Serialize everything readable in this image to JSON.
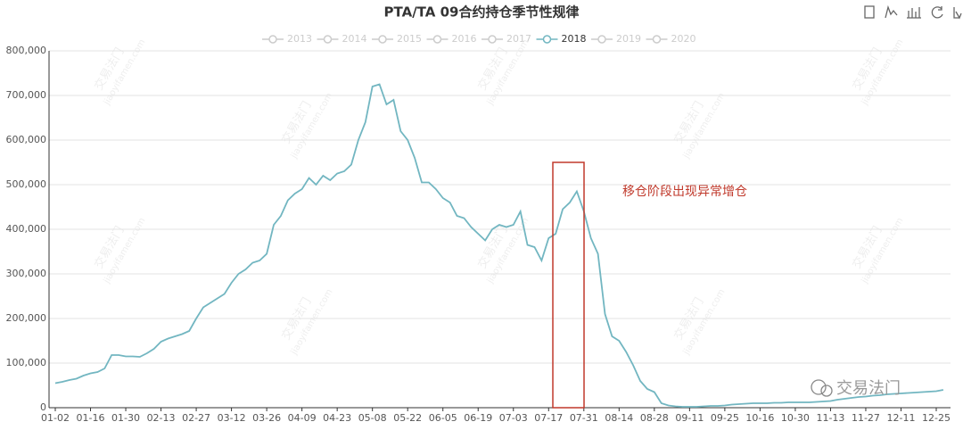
{
  "chart_data": {
    "type": "line",
    "title": "PTA/TA 09合约持仓季节性规律",
    "legend": [
      "2013",
      "2014",
      "2015",
      "2016",
      "2017",
      "2018",
      "2019",
      "2020"
    ],
    "annotation": "移仓阶段出现异常增仓",
    "watermark": "交易法门",
    "watermark_site": "jiaoyifamen.com",
    "categories": [
      "01-02",
      null,
      null,
      null,
      null,
      "01-16",
      null,
      null,
      null,
      null,
      "01-30",
      null,
      null,
      null,
      null,
      "02-13",
      null,
      null,
      null,
      null,
      "02-27",
      null,
      null,
      null,
      null,
      "03-12",
      null,
      null,
      null,
      null,
      "03-26",
      null,
      null,
      null,
      null,
      "04-09",
      null,
      null,
      null,
      null,
      "04-23",
      null,
      null,
      null,
      null,
      "05-08",
      null,
      null,
      null,
      null,
      "05-22",
      null,
      null,
      null,
      null,
      "06-05",
      null,
      null,
      null,
      null,
      "06-19",
      null,
      null,
      null,
      null,
      "07-03",
      null,
      null,
      null,
      null,
      "07-17",
      null,
      null,
      null,
      null,
      "07-31",
      null,
      null,
      null,
      null,
      "08-14",
      null,
      null,
      null,
      null,
      "08-28",
      null,
      null,
      null,
      null,
      "09-11",
      null,
      null,
      null,
      null,
      "09-25",
      null,
      null,
      null,
      null,
      "10-16",
      null,
      null,
      null,
      null,
      "10-30",
      null,
      null,
      null,
      null,
      "11-13",
      null,
      null,
      null,
      null,
      "11-27",
      null,
      null,
      null,
      null,
      "12-11",
      null,
      null,
      null,
      null,
      "12-25",
      null
    ],
    "series": [
      {
        "name": "2018",
        "color": "#72b6c1",
        "values": [
          55000,
          58000,
          62000,
          65000,
          72000,
          77000,
          80000,
          88000,
          118000,
          118000,
          115000,
          115000,
          114000,
          122000,
          132000,
          148000,
          155000,
          160000,
          165000,
          172000,
          200000,
          225000,
          235000,
          245000,
          255000,
          280000,
          300000,
          310000,
          325000,
          330000,
          345000,
          410000,
          430000,
          465000,
          480000,
          490000,
          515000,
          500000,
          520000,
          510000,
          525000,
          530000,
          545000,
          600000,
          640000,
          720000,
          725000,
          680000,
          690000,
          620000,
          600000,
          560000,
          505000,
          505000,
          490000,
          470000,
          460000,
          430000,
          425000,
          405000,
          390000,
          375000,
          400000,
          410000,
          405000,
          410000,
          440000,
          365000,
          360000,
          330000,
          380000,
          390000,
          445000,
          460000,
          485000,
          440000,
          380000,
          345000,
          210000,
          160000,
          150000,
          125000,
          95000,
          60000,
          42000,
          35000,
          10000,
          5000,
          3000,
          2000,
          2000,
          2000,
          3000,
          4000,
          4000,
          5000,
          7000,
          8000,
          9000,
          10000,
          10000,
          10000,
          11000,
          11000,
          12000,
          12000,
          12000,
          12000,
          13000,
          14000,
          15000,
          18000,
          20000,
          22000,
          24000,
          25000,
          27000,
          28000,
          30000,
          31000,
          32000,
          33000,
          34000,
          35000,
          36000,
          37000,
          40000
        ]
      }
    ],
    "ylim": [
      0,
      800000
    ],
    "yticks": [
      0,
      {
        "value": 100000,
        "label": "100,000"
      },
      {
        "value": 200000,
        "label": "200,000"
      },
      {
        "value": 300000,
        "label": "300,000"
      },
      {
        "value": 400000,
        "label": "400,000"
      },
      {
        "value": 500000,
        "label": "500,000"
      },
      {
        "value": 600000,
        "label": "600,000"
      },
      {
        "value": 700000,
        "label": "700,000"
      },
      {
        "value": 800000,
        "label": "800,000"
      }
    ],
    "grid": true
  }
}
